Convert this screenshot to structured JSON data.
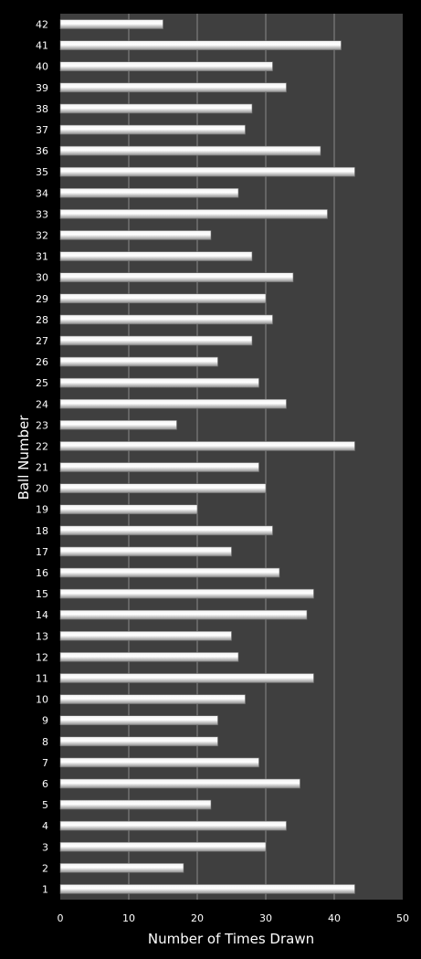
{
  "chart_data": {
    "type": "bar",
    "orientation": "horizontal",
    "xlabel": "Number of Times Drawn",
    "ylabel": "Ball Number",
    "xlim": [
      0,
      50
    ],
    "x_ticks": [
      0,
      10,
      20,
      30,
      40,
      50
    ],
    "grid": true,
    "colors": {
      "background": "#000000",
      "plot_area": "#3f3f3f",
      "gridline": "#8a8a8a",
      "bar_light": "#ffffff",
      "bar_dark": "#8c8c8c",
      "text": "#ffffff"
    },
    "categories": [
      "1",
      "2",
      "3",
      "4",
      "5",
      "6",
      "7",
      "8",
      "9",
      "10",
      "11",
      "12",
      "13",
      "14",
      "15",
      "16",
      "17",
      "18",
      "19",
      "20",
      "21",
      "22",
      "23",
      "24",
      "25",
      "26",
      "27",
      "28",
      "29",
      "30",
      "31",
      "32",
      "33",
      "34",
      "35",
      "36",
      "37",
      "38",
      "39",
      "40",
      "41",
      "42"
    ],
    "values": [
      43,
      18,
      30,
      33,
      22,
      35,
      29,
      23,
      23,
      27,
      37,
      26,
      25,
      36,
      37,
      32,
      25,
      31,
      20,
      30,
      29,
      43,
      17,
      33,
      29,
      23,
      28,
      31,
      30,
      34,
      28,
      22,
      39,
      26,
      43,
      38,
      27,
      28,
      33,
      31,
      41,
      15
    ]
  }
}
